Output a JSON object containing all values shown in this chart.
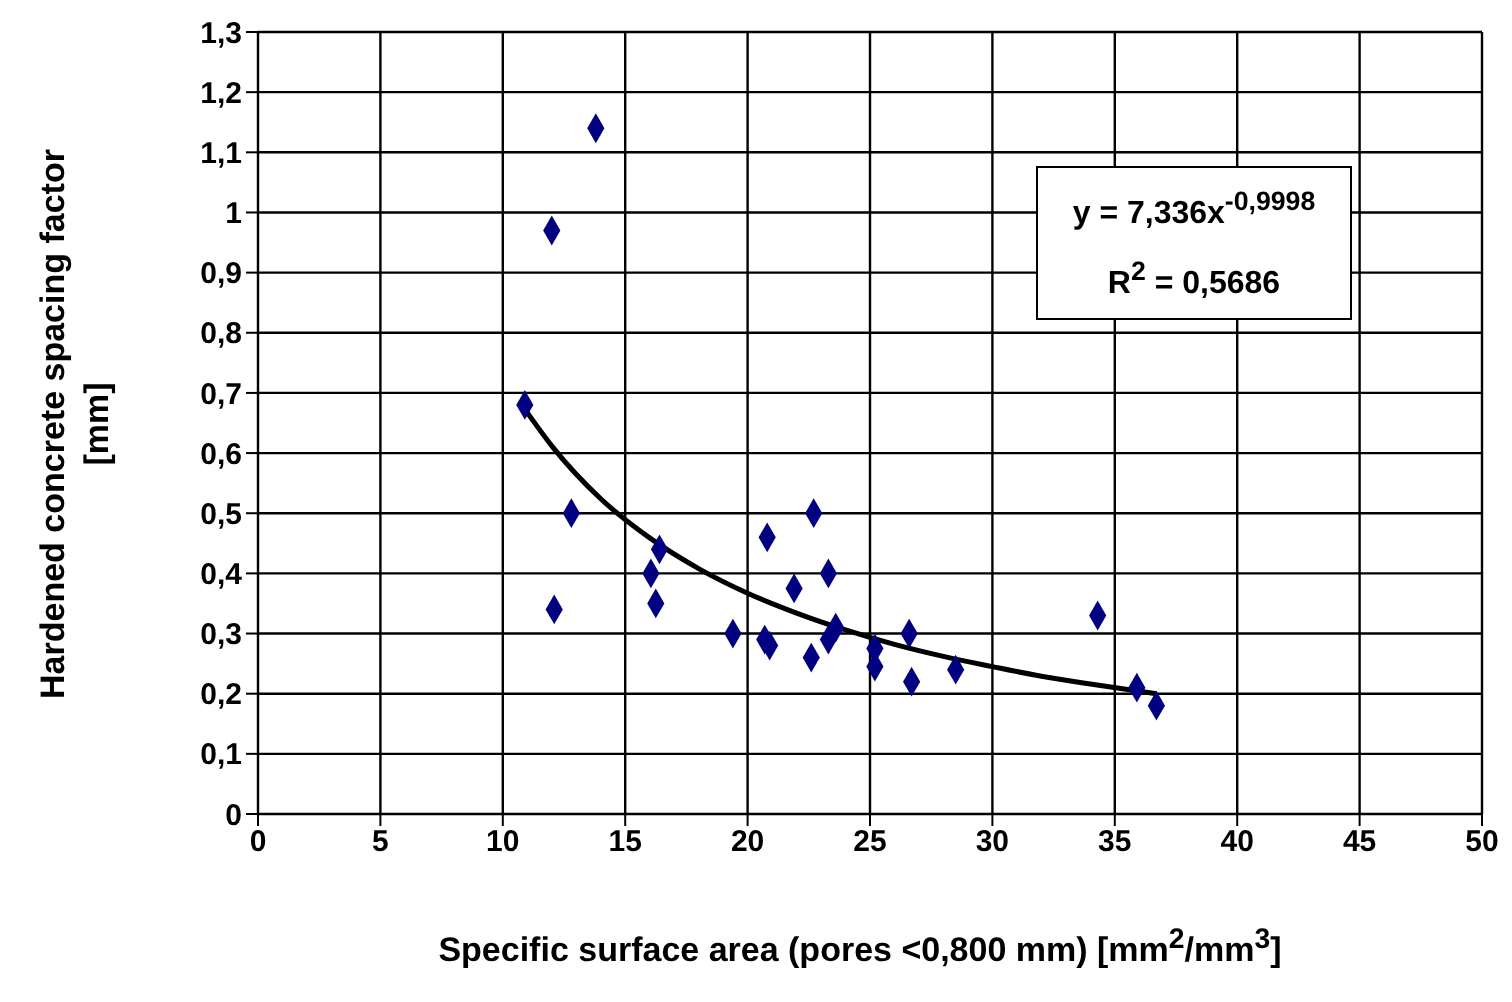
{
  "chart_data": {
    "type": "scatter",
    "xlabel": "Specific surface area (pores <0,800 mm) [mm$^{2}$/mm$^{3}$]",
    "ylabel": "Hardened concrete spacing factor [mm]",
    "series": [
      {
        "color": "#000080",
        "marker": "diamond",
        "x": [
          13.8,
          12.0,
          10.9,
          12.8,
          12.1,
          16.4,
          16.05,
          16.25,
          19.4,
          20.8,
          20.9,
          20.7,
          21.9,
          22.7,
          23.3,
          22.6,
          23.6,
          23.3,
          25.2,
          25.2,
          26.6,
          26.7,
          28.5,
          34.3,
          35.9,
          36.7
        ],
        "values": [
          1.14,
          0.97,
          0.68,
          0.5,
          0.34,
          0.44,
          0.4,
          0.35,
          0.3,
          0.46,
          0.28,
          0.29,
          0.375,
          0.5,
          0.4,
          0.26,
          0.31,
          0.29,
          0.275,
          0.245,
          0.3,
          0.22,
          0.24,
          0.33,
          0.21,
          0.18
        ]
      },
      {
        "type": "line",
        "color": "#000000",
        "marker": "none",
        "line_style": "solid",
        "x": [
          10.9,
          12,
          14,
          16,
          18,
          20,
          22,
          24,
          26,
          28,
          30,
          32,
          34,
          36.7
        ],
        "values": [
          0.673,
          0.612,
          0.524,
          0.459,
          0.408,
          0.367,
          0.334,
          0.306,
          0.282,
          0.262,
          0.245,
          0.229,
          0.216,
          0.2
        ]
      }
    ],
    "xlim": [
      0,
      50
    ],
    "xticks": [
      0,
      5,
      10,
      15,
      20,
      25,
      30,
      35,
      40,
      45,
      50
    ],
    "ylim": [
      0,
      1.3
    ],
    "yticks": [
      0,
      {
        "value": 0.1,
        "label": "0,1"
      },
      {
        "value": 0.2,
        "label": "0,2"
      },
      {
        "value": 0.3,
        "label": "0,3"
      },
      {
        "value": 0.4,
        "label": "0,4"
      },
      {
        "value": 0.5,
        "label": "0,5"
      },
      {
        "value": 0.6,
        "label": "0,6"
      },
      {
        "value": 0.7,
        "label": "0,7"
      },
      {
        "value": 0.8,
        "label": "0,8"
      },
      {
        "value": 0.9,
        "label": "0,9"
      },
      1,
      {
        "value": 1.1,
        "label": "1,1"
      },
      {
        "value": 1.2,
        "label": "1,2"
      },
      {
        "value": 1.3,
        "label": "1,3"
      }
    ],
    "grid": true,
    "legend": false,
    "annotations": [
      "y = 7,336x$^{-0,9998}$\nR$^{2}$ = 0,5686"
    ]
  }
}
